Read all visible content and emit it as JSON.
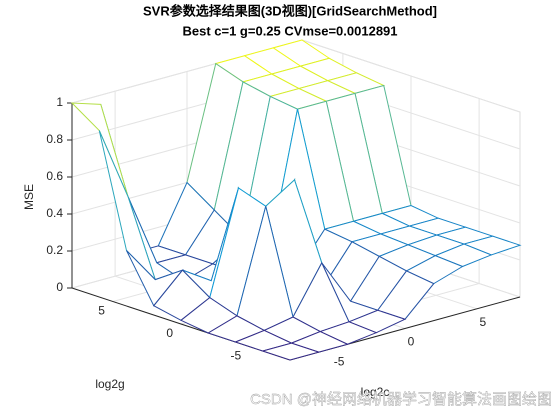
{
  "chart_data": {
    "type": "mesh3d",
    "title": "SVR参数选择结果图(3D视图)[GridSearchMethod]",
    "subtitle": "Best c=1 g=0.25 CVmse=0.0012891",
    "xlabel": "log2c",
    "ylabel": "log2g",
    "zlabel": "MSE",
    "x": [
      -8,
      -6,
      -4,
      -2,
      0,
      2,
      4,
      6,
      8
    ],
    "y": [
      -8,
      -6,
      -4,
      -2,
      0,
      2,
      4,
      6,
      8
    ],
    "z": [
      [
        0,
        0,
        0,
        0.02,
        0.05,
        0.2,
        0.25,
        0.27,
        0.28
      ],
      [
        0,
        0,
        0.02,
        0.03,
        0.05,
        0.22,
        0.26,
        0.28,
        0.28
      ],
      [
        0,
        0.02,
        0.05,
        0.3,
        0.05,
        0.25,
        0.27,
        0.28,
        0.28
      ],
      [
        0,
        0.05,
        0.6,
        0.7,
        0.08,
        0.28,
        0.28,
        0.28,
        0.28
      ],
      [
        0.02,
        0.1,
        0.65,
        0.2,
        0.1,
        0.3,
        0.3,
        0.3,
        0.3
      ],
      [
        0.05,
        0.2,
        0.1,
        0.1,
        0.15,
        0.9,
        0.9,
        0.9,
        0.9
      ],
      [
        0.3,
        0.1,
        0.05,
        0.1,
        0.2,
        0.92,
        0.92,
        0.92,
        0.92
      ],
      [
        0.9,
        0.5,
        0.1,
        0.1,
        0.3,
        0.95,
        0.95,
        0.95,
        0.95
      ],
      [
        1,
        0.95,
        0.1,
        0.1,
        0.4,
        1,
        1,
        1,
        1
      ]
    ],
    "xlim": [
      -8,
      8
    ],
    "ylim": [
      -8,
      8
    ],
    "zlim": [
      0,
      1
    ],
    "xticks": [
      -5,
      0,
      5
    ],
    "yticks": [
      -5,
      0,
      5
    ],
    "zticks": [
      0,
      0.2,
      0.4,
      0.6,
      0.8,
      1
    ],
    "grid": true,
    "watermark": "CSDN @神经网络机器学习智能算法画图绘图"
  }
}
